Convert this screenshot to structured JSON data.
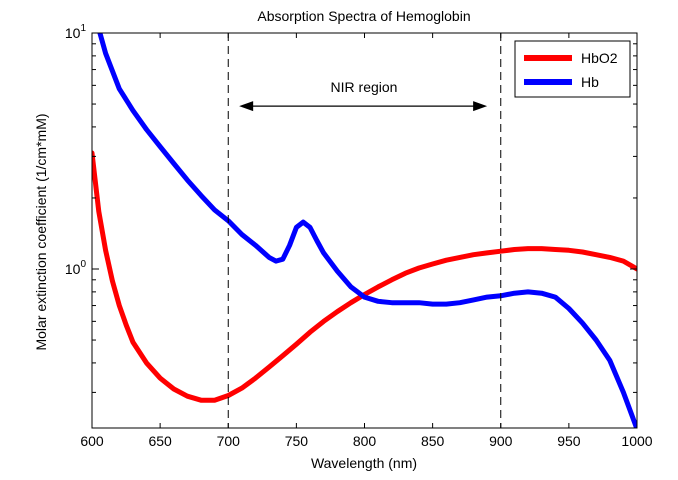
{
  "chart_data": {
    "type": "line",
    "title": "Absorption Spectra of Hemoglobin",
    "xlabel": "Wavelength (nm)",
    "ylabel": "Molar extinction coefficient (1/cm*mM)",
    "xlim": [
      600,
      1000
    ],
    "ylim": [
      0.2,
      10
    ],
    "yscale": "log",
    "grid": false,
    "legend_position": "top-right",
    "x_ticks": [
      "600",
      "650",
      "700",
      "750",
      "800",
      "850",
      "900",
      "950",
      "1000"
    ],
    "y_tick_labels": [
      {
        "value": 1,
        "base": "10",
        "exp": "0"
      },
      {
        "value": 10,
        "base": "10",
        "exp": "1"
      }
    ],
    "series": [
      {
        "name": "HbO2",
        "color": "#ff0000",
        "x": [
          600,
          605,
          610,
          615,
          620,
          625,
          630,
          640,
          650,
          660,
          670,
          680,
          690,
          700,
          710,
          720,
          730,
          740,
          750,
          760,
          770,
          780,
          790,
          800,
          810,
          820,
          830,
          840,
          850,
          860,
          870,
          880,
          890,
          900,
          910,
          920,
          930,
          940,
          950,
          960,
          970,
          980,
          990,
          1000
        ],
        "y": [
          3.1,
          1.75,
          1.2,
          0.89,
          0.7,
          0.58,
          0.49,
          0.4,
          0.345,
          0.31,
          0.289,
          0.278,
          0.278,
          0.291,
          0.313,
          0.345,
          0.384,
          0.429,
          0.48,
          0.54,
          0.6,
          0.66,
          0.72,
          0.78,
          0.84,
          0.9,
          0.96,
          1.01,
          1.05,
          1.09,
          1.12,
          1.15,
          1.17,
          1.19,
          1.21,
          1.22,
          1.22,
          1.21,
          1.2,
          1.18,
          1.15,
          1.12,
          1.08,
          1.0
        ]
      },
      {
        "name": "Hb",
        "color": "#0000ff",
        "x": [
          600,
          605,
          610,
          620,
          630,
          640,
          650,
          660,
          670,
          680,
          690,
          700,
          710,
          720,
          730,
          735,
          740,
          745,
          750,
          755,
          760,
          765,
          770,
          780,
          790,
          800,
          810,
          820,
          830,
          840,
          850,
          860,
          870,
          880,
          890,
          900,
          910,
          920,
          930,
          940,
          950,
          960,
          970,
          980,
          990,
          1000
        ],
        "y": [
          12.5,
          10.4,
          8.2,
          5.8,
          4.7,
          3.9,
          3.3,
          2.8,
          2.38,
          2.05,
          1.78,
          1.6,
          1.4,
          1.26,
          1.12,
          1.08,
          1.1,
          1.26,
          1.5,
          1.58,
          1.5,
          1.32,
          1.17,
          0.98,
          0.84,
          0.76,
          0.73,
          0.72,
          0.72,
          0.72,
          0.71,
          0.71,
          0.72,
          0.74,
          0.76,
          0.77,
          0.79,
          0.8,
          0.79,
          0.76,
          0.68,
          0.59,
          0.5,
          0.41,
          0.3,
          0.21
        ]
      }
    ],
    "reference_lines": [
      {
        "x": 700,
        "style": "dashed"
      },
      {
        "x": 900,
        "style": "dashed"
      }
    ],
    "annotation": {
      "text": "NIR region",
      "arrow_from": 708,
      "arrow_to": 890,
      "arrow_y": 4.9
    }
  }
}
